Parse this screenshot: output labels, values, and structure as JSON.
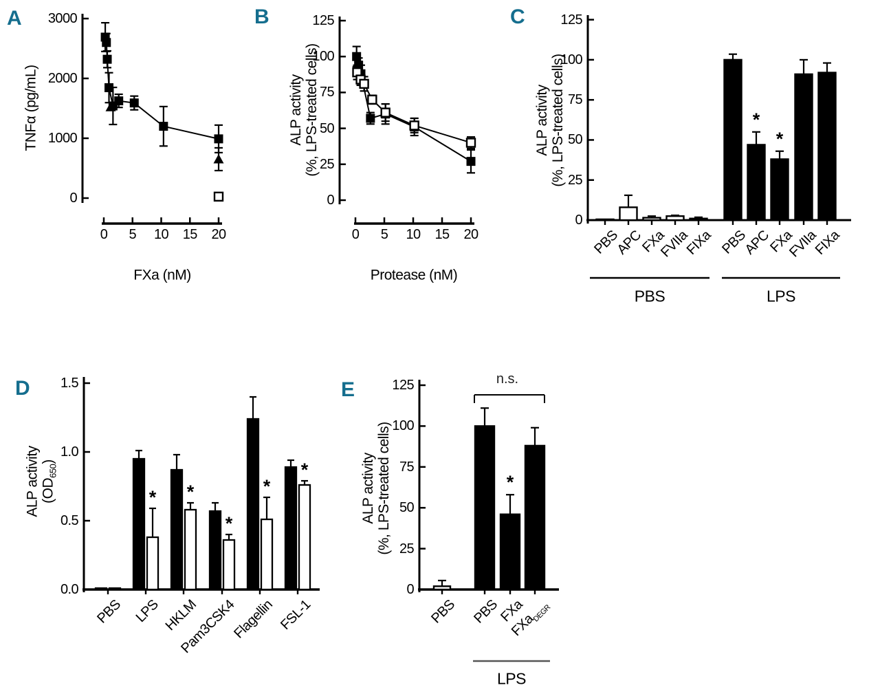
{
  "figure": {
    "accent_color": "#156e8e",
    "ink_color": "#000000",
    "background": "#ffffff"
  },
  "chart_data": [
    {
      "id": "A",
      "label": "A",
      "type": "scatter",
      "xlabel": "FXa (nM)",
      "ylabel": "TNFα (pg/mL)",
      "xticks": [
        0,
        5,
        10,
        15,
        20
      ],
      "yticks": [
        0,
        1000,
        2000,
        3000
      ],
      "xlim": [
        0,
        20
      ],
      "ylim": [
        0,
        3000
      ],
      "series": [
        {
          "name": "FXa dose response",
          "marker": "square-filled",
          "connected": true,
          "points": [
            [
              0.25,
              2690,
              240
            ],
            [
              0.45,
              2600,
              150
            ],
            [
              0.6,
              2320,
              140
            ],
            [
              0.9,
              1845,
              250
            ],
            [
              1.6,
              1540,
              310
            ],
            [
              2.6,
              1625,
              110
            ],
            [
              5.3,
              1590,
              115
            ],
            [
              10.4,
              1200,
              330
            ],
            [
              20,
              990,
              230
            ]
          ]
        },
        {
          "name": "triangle points",
          "marker": "triangle-filled",
          "connected": false,
          "points": [
            [
              1.2,
              1520,
              0
            ],
            [
              20,
              650,
              190
            ]
          ]
        },
        {
          "name": "open square control",
          "marker": "square-open",
          "connected": false,
          "points": [
            [
              20,
              25,
              0
            ]
          ]
        }
      ]
    },
    {
      "id": "B",
      "label": "B",
      "type": "scatter",
      "xlabel": "Protease (nM)",
      "ylabel_line1": "ALP activity",
      "ylabel_line2": "(%, LPS-treated cells)",
      "xticks": [
        0,
        5,
        10,
        15,
        20
      ],
      "yticks": [
        0,
        25,
        50,
        75,
        100,
        125
      ],
      "xlim": [
        0,
        20
      ],
      "ylim": [
        0,
        125
      ],
      "series": [
        {
          "name": "filled squares",
          "marker": "square-filled",
          "connected": true,
          "points": [
            [
              0.2,
              100,
              7
            ],
            [
              0.55,
              94,
              5
            ],
            [
              0.95,
              88,
              6
            ],
            [
              2.6,
              57,
              4
            ],
            [
              5.2,
              60,
              7
            ],
            [
              10.2,
              51,
              6
            ],
            [
              20,
              27,
              8
            ]
          ]
        },
        {
          "name": "open squares",
          "marker": "square-open",
          "connected": true,
          "points": [
            [
              0.3,
              89,
              5
            ],
            [
              0.9,
              84,
              4
            ],
            [
              1.5,
              81,
              5
            ],
            [
              2.9,
              70,
              3
            ],
            [
              5.2,
              61,
              6
            ],
            [
              10.2,
              52,
              5
            ],
            [
              20,
              40,
              4
            ]
          ]
        }
      ]
    },
    {
      "id": "C",
      "label": "C",
      "type": "bar",
      "ylabel_line1": "ALP activity",
      "ylabel_line2": "(%, LPS-treated cells)",
      "yticks": [
        0,
        25,
        50,
        75,
        100,
        125
      ],
      "ylim": [
        0,
        125
      ],
      "groups": [
        {
          "label": "PBS",
          "fill": "white",
          "bars": [
            {
              "category": "PBS",
              "value": 0.5,
              "err": 0,
              "star": false
            },
            {
              "category": "APC",
              "value": 8,
              "err": 7.5,
              "star": false
            },
            {
              "category": "FXa",
              "value": 1.5,
              "err": 1,
              "star": false
            },
            {
              "category": "FVIIa",
              "value": 2.5,
              "err": 0.5,
              "star": false
            },
            {
              "category": "FIXa",
              "value": 1,
              "err": 0.8,
              "star": false
            }
          ]
        },
        {
          "label": "LPS",
          "fill": "black",
          "bars": [
            {
              "category": "PBS",
              "value": 100,
              "err": 3.5,
              "star": false
            },
            {
              "category": "APC",
              "value": 47,
              "err": 8,
              "star": true
            },
            {
              "category": "FXa",
              "value": 38,
              "err": 5,
              "star": true
            },
            {
              "category": "FVIIa",
              "value": 91,
              "err": 9,
              "star": false
            },
            {
              "category": "FIXa",
              "value": 92,
              "err": 6,
              "star": false
            }
          ]
        }
      ]
    },
    {
      "id": "D",
      "label": "D",
      "type": "bar-paired",
      "ylabel_line1": "ALP activity",
      "ylabel_line2_prefix": "(OD",
      "ylabel_sub": "650",
      "ylabel_line2_suffix": ")",
      "yticks": [
        "0.0",
        "0.5",
        "1.0",
        "1.5"
      ],
      "ylim": [
        0,
        1.5
      ],
      "categories": [
        "PBS",
        "LPS",
        "HKLM",
        "Pam3CSK4",
        "Flagellin",
        "FSL-1"
      ],
      "series": [
        {
          "name": "black",
          "fill": "black",
          "values": [
            0.01,
            0.95,
            0.87,
            0.57,
            1.24,
            0.89
          ],
          "errs": [
            0,
            0.06,
            0.11,
            0.06,
            0.16,
            0.05
          ],
          "stars": [
            false,
            false,
            false,
            false,
            false,
            false
          ]
        },
        {
          "name": "white",
          "fill": "white",
          "values": [
            0.01,
            0.38,
            0.58,
            0.36,
            0.51,
            0.76
          ],
          "errs": [
            0,
            0.21,
            0.05,
            0.04,
            0.16,
            0.03
          ],
          "stars": [
            false,
            true,
            true,
            true,
            true,
            true
          ]
        }
      ]
    },
    {
      "id": "E",
      "label": "E",
      "type": "bar",
      "ylabel_line1": "ALP activity",
      "ylabel_line2": "(%, LPS-treated cells)",
      "yticks": [
        0,
        25,
        50,
        75,
        100,
        125
      ],
      "ylim": [
        0,
        125
      ],
      "bars": [
        {
          "category": "PBS",
          "sub": "",
          "value": 2,
          "err": 3.5,
          "fill": "white",
          "star": false
        },
        {
          "category": "PBS",
          "sub": "",
          "value": 100,
          "err": 11,
          "fill": "black",
          "star": false
        },
        {
          "category": "FXa",
          "sub": "",
          "value": 46,
          "err": 12,
          "fill": "black",
          "star": true
        },
        {
          "category": "FXa",
          "sub": "DEGR",
          "value": 88,
          "err": 11,
          "fill": "black",
          "star": false
        }
      ],
      "group_label": "LPS",
      "ns_label": "n.s."
    }
  ]
}
